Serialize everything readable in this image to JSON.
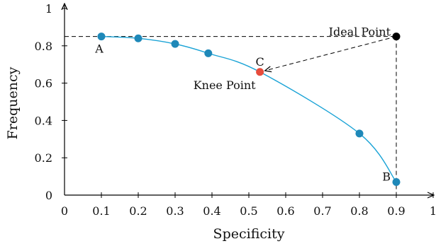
{
  "chart_data": {
    "type": "scatter",
    "xlabel": "Specificity",
    "ylabel": "Frequency",
    "xlim": [
      0,
      1
    ],
    "ylim": [
      0,
      1
    ],
    "xticks": [
      "0",
      "0.1",
      "0.2",
      "0.3",
      "0.4",
      "0.5",
      "0.6",
      "0.7",
      "0.8",
      "0.9",
      "1"
    ],
    "yticks": [
      "0",
      "0.2",
      "0.4",
      "0.6",
      "0.8",
      "1"
    ],
    "grid": false,
    "curve_color": "#1aa3d6",
    "series": [
      {
        "color": "#1e88b8",
        "points": [
          {
            "x": 0.1,
            "y": 0.85
          },
          {
            "x": 0.2,
            "y": 0.84
          },
          {
            "x": 0.3,
            "y": 0.81
          },
          {
            "x": 0.39,
            "y": 0.76
          },
          {
            "x": 0.8,
            "y": 0.33
          },
          {
            "x": 0.9,
            "y": 0.07
          }
        ]
      },
      {
        "color": "#e74c3c",
        "points": [
          {
            "x": 0.53,
            "y": 0.66
          }
        ]
      },
      {
        "color": "#000000",
        "points": [
          {
            "x": 0.9,
            "y": 0.85
          }
        ]
      }
    ],
    "curve": [
      {
        "x": 0.1,
        "y": 0.85
      },
      {
        "x": 0.2,
        "y": 0.84
      },
      {
        "x": 0.3,
        "y": 0.81
      },
      {
        "x": 0.39,
        "y": 0.76
      },
      {
        "x": 0.53,
        "y": 0.66
      },
      {
        "x": 0.8,
        "y": 0.33
      },
      {
        "x": 0.9,
        "y": 0.07
      }
    ],
    "annotations": [
      {
        "text": "A",
        "x": 0.1,
        "y": 0.85
      },
      {
        "text": "B",
        "x": 0.9,
        "y": 0.07
      },
      {
        "text": "C",
        "x": 0.53,
        "y": 0.66
      },
      {
        "text": "Knee Point",
        "x": 0.53,
        "y": 0.66
      },
      {
        "text": "Ideal Point",
        "x": 0.9,
        "y": 0.85
      }
    ]
  }
}
